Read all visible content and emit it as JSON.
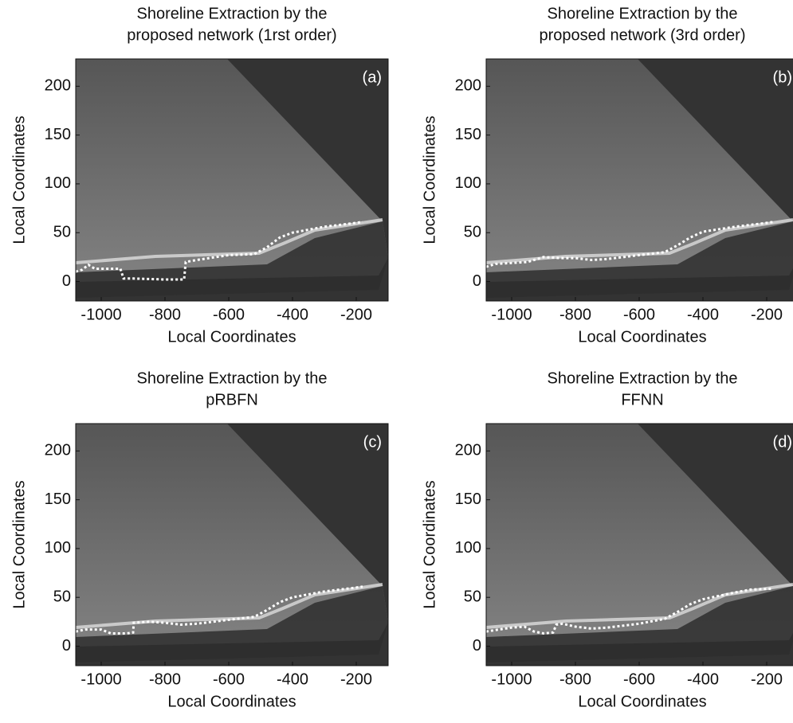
{
  "chart_data": [
    {
      "type": "line",
      "title": [
        "Shoreline Extraction by the",
        "proposed network (1rst order)"
      ],
      "annotation": "(a)",
      "xlabel": "Local Coordinates",
      "ylabel": "Local Coordinates",
      "x": [
        -1080,
        -1060,
        -1040,
        -1020,
        -960,
        -940,
        -930,
        -900,
        -800,
        -740,
        -735,
        -700,
        -600,
        -520,
        -480,
        -440,
        -400,
        -300,
        -200,
        -180
      ],
      "values": [
        10,
        12,
        17,
        13,
        13,
        13,
        3,
        3,
        2,
        2,
        20,
        22,
        27,
        28,
        35,
        45,
        50,
        56,
        60,
        61
      ],
      "color": "#ffffff",
      "xlim": [
        -1080,
        -100
      ],
      "ylim": [
        -20,
        228
      ],
      "xticks": [
        -1000,
        -800,
        -600,
        -400,
        -200
      ],
      "yticks": [
        0,
        50,
        100,
        150,
        200
      ]
    },
    {
      "type": "line",
      "title": [
        "Shoreline Extraction by the",
        "proposed network (3rd order)"
      ],
      "annotation": "(b)",
      "xlabel": "Local Coordinates",
      "ylabel": "Local Coordinates",
      "x": [
        -1080,
        -1050,
        -1000,
        -950,
        -900,
        -850,
        -800,
        -750,
        -700,
        -600,
        -520,
        -480,
        -440,
        -400,
        -300,
        -200,
        -180
      ],
      "values": [
        15,
        18,
        19,
        20,
        25,
        24,
        24,
        22,
        23,
        27,
        30,
        37,
        45,
        51,
        56,
        60,
        61
      ],
      "color": "#ffffff",
      "xlim": [
        -1080,
        -100
      ],
      "ylim": [
        -20,
        228
      ],
      "xticks": [
        -1000,
        -800,
        -600,
        -400,
        -200
      ],
      "yticks": [
        0,
        50,
        100,
        150,
        200
      ]
    },
    {
      "type": "line",
      "title": [
        "Shoreline Extraction by the",
        "pRBFN"
      ],
      "annotation": "(c)",
      "xlabel": "Local Coordinates",
      "ylabel": "Local Coordinates",
      "x": [
        -1080,
        -1050,
        -1000,
        -970,
        -920,
        -900,
        -898,
        -850,
        -800,
        -750,
        -700,
        -600,
        -520,
        -480,
        -440,
        -400,
        -300,
        -200,
        -180
      ],
      "values": [
        15,
        17,
        17,
        13,
        13,
        14,
        24,
        25,
        24,
        22,
        23,
        27,
        30,
        37,
        45,
        50,
        56,
        60,
        61
      ],
      "color": "#ffffff",
      "xlim": [
        -1080,
        -100
      ],
      "ylim": [
        -20,
        228
      ],
      "xticks": [
        -1000,
        -800,
        -600,
        -400,
        -200
      ],
      "yticks": [
        0,
        50,
        100,
        150,
        200
      ]
    },
    {
      "type": "line",
      "title": [
        "Shoreline Extraction by the",
        "FFNN"
      ],
      "annotation": "(d)",
      "xlabel": "Local Coordinates",
      "ylabel": "Local Coordinates",
      "x": [
        -1080,
        -1040,
        -1000,
        -960,
        -930,
        -900,
        -870,
        -860,
        -840,
        -800,
        -750,
        -700,
        -600,
        -520,
        -480,
        -440,
        -400,
        -300,
        -250,
        -180
      ],
      "values": [
        15,
        17,
        19,
        20,
        15,
        13,
        14,
        22,
        23,
        20,
        18,
        19,
        23,
        28,
        35,
        43,
        48,
        55,
        58,
        59
      ],
      "color": "#ffffff",
      "xlim": [
        -1080,
        -100
      ],
      "ylim": [
        -20,
        228
      ],
      "xticks": [
        -1000,
        -800,
        -600,
        -400,
        -200
      ],
      "yticks": [
        0,
        50,
        100,
        150,
        200
      ]
    }
  ]
}
